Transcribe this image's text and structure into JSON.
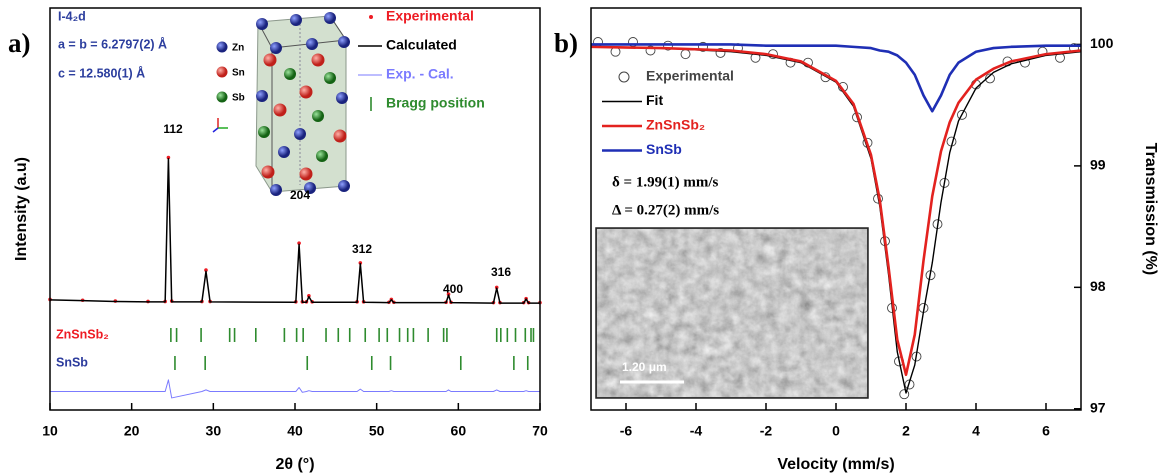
{
  "chart_data": [
    {
      "type": "line",
      "panel_label": "a)",
      "xlabel": "2θ (°)",
      "ylabel": "Intensity (a.u)",
      "xlim": [
        10,
        70
      ],
      "xticks": [
        10,
        20,
        30,
        40,
        50,
        60,
        70
      ],
      "ylim": [
        0,
        100
      ],
      "x": [
        10,
        14,
        18,
        22,
        24.1,
        24.5,
        24.9,
        28.6,
        29.1,
        29.6,
        40.1,
        40.5,
        40.9,
        41.4,
        41.7,
        42.1,
        47.6,
        48.0,
        48.4,
        51.5,
        51.8,
        52.1,
        58.5,
        58.8,
        59.1,
        64.3,
        64.7,
        65.1,
        68.0,
        68.3,
        68.6,
        70
      ],
      "series": [
        {
          "name": "Experimental",
          "color": "#ee1c24",
          "marker": "dot",
          "values": [
            27.5,
            27.3,
            27.1,
            27.0,
            27.0,
            62.8,
            27.1,
            27.0,
            34.8,
            27.0,
            26.9,
            41.5,
            26.9,
            26.9,
            28.4,
            26.9,
            26.9,
            36.6,
            26.9,
            26.8,
            27.5,
            26.8,
            26.8,
            28.8,
            26.8,
            26.7,
            30.5,
            26.7,
            26.7,
            27.7,
            26.7,
            26.7
          ]
        },
        {
          "name": "Calculated",
          "color": "#000000",
          "line_width": 1.5,
          "values": [
            27.4,
            27.2,
            27.0,
            26.9,
            26.9,
            62.5,
            26.9,
            26.9,
            34.5,
            26.9,
            26.8,
            41.2,
            26.8,
            26.8,
            28.2,
            26.8,
            26.8,
            36.4,
            26.8,
            26.7,
            27.4,
            26.7,
            26.7,
            28.6,
            26.7,
            26.6,
            30.3,
            26.6,
            26.6,
            27.6,
            26.6,
            26.6
          ]
        },
        {
          "name": "Exp. - Cal.",
          "color": "#7b7bff",
          "line_width": 1,
          "values": [
            4.6,
            4.6,
            4.6,
            4.6,
            4.6,
            7.5,
            3.0,
            4.6,
            5.0,
            4.6,
            4.6,
            5.6,
            4.4,
            4.6,
            4.8,
            4.6,
            4.6,
            5.2,
            4.6,
            4.6,
            4.8,
            4.6,
            4.6,
            5.0,
            4.6,
            4.6,
            5.0,
            4.6,
            4.6,
            4.8,
            4.6,
            4.6
          ]
        }
      ],
      "bragg": {
        "name": "Bragg position",
        "color": "#2e8b2e",
        "phases": [
          {
            "name": "ZnSnSb₂",
            "color": "#ee1c24",
            "positions": [
              24.8,
              25.5,
              28.5,
              32.0,
              32.6,
              35.2,
              38.7,
              40.2,
              41.0,
              43.8,
              45.3,
              46.7,
              48.6,
              50.3,
              51.3,
              52.8,
              53.8,
              54.5,
              56.3,
              58.2,
              58.6,
              64.7,
              65.2,
              66.0,
              67.0,
              68.2,
              68.9,
              69.2
            ]
          },
          {
            "name": "SnSb",
            "color": "#2b3a9c",
            "positions": [
              25.3,
              29.0,
              41.5,
              49.4,
              51.7,
              60.3,
              66.8,
              68.5
            ]
          }
        ]
      },
      "peak_labels": [
        "112",
        "204",
        "312",
        "400",
        "316"
      ],
      "cell_info": [
        "I-4₂d",
        "a = b = 6.2797(2) Å",
        "c = 12.580(1) Å"
      ],
      "structure_legend": [
        "Zn",
        "Sn",
        "Sb"
      ]
    },
    {
      "type": "line",
      "panel_label": "b)",
      "xlabel": "Velocity (mm/s)",
      "ylabel": "Transmission (%)",
      "xlim": [
        -7,
        7
      ],
      "xticks": [
        -6,
        -4,
        -2,
        0,
        2,
        4,
        6
      ],
      "ylim": [
        96.99,
        100.3
      ],
      "yticks": [
        97,
        98,
        99,
        100
      ],
      "y_axis_side": "right",
      "x": [
        -7,
        -5,
        -3,
        -2,
        -1,
        0,
        0.5,
        1,
        1.25,
        1.5,
        1.75,
        2,
        2.25,
        2.5,
        2.75,
        3,
        3.25,
        3.5,
        4,
        4.5,
        5,
        6,
        7
      ],
      "series": [
        {
          "name": "Experimental",
          "color": "#444444",
          "marker": "circle",
          "x": [
            -6.8,
            -6.3,
            -5.8,
            -5.3,
            -4.8,
            -4.3,
            -3.8,
            -3.3,
            -2.8,
            -2.3,
            -1.8,
            -1.3,
            -0.8,
            -0.3,
            0.2,
            0.6,
            0.9,
            1.2,
            1.4,
            1.6,
            1.8,
            1.95,
            2.1,
            2.3,
            2.5,
            2.7,
            2.9,
            3.1,
            3.3,
            3.6,
            4.0,
            4.4,
            4.9,
            5.4,
            5.9,
            6.4,
            6.8
          ],
          "values": [
            100.02,
            99.94,
            100.02,
            99.95,
            99.99,
            99.92,
            99.98,
            99.93,
            99.97,
            99.89,
            99.92,
            99.85,
            99.85,
            99.73,
            99.65,
            99.4,
            99.19,
            98.73,
            98.38,
            97.83,
            97.39,
            97.12,
            97.2,
            97.43,
            97.83,
            98.1,
            98.52,
            98.86,
            99.2,
            99.42,
            99.67,
            99.72,
            99.86,
            99.85,
            99.94,
            99.89,
            99.97
          ]
        },
        {
          "name": "Fit",
          "color": "#000000",
          "line_width": 1.4,
          "values": [
            99.98,
            99.97,
            99.94,
            99.91,
            99.85,
            99.69,
            99.49,
            99.06,
            98.67,
            98.11,
            97.47,
            97.13,
            97.36,
            97.8,
            98.2,
            98.7,
            99.11,
            99.37,
            99.64,
            99.77,
            99.84,
            99.91,
            99.94
          ]
        },
        {
          "name": "ZnSnSb₂",
          "color": "#e3221f",
          "line_width": 2.6,
          "values": [
            99.98,
            99.97,
            99.95,
            99.92,
            99.86,
            99.7,
            99.51,
            99.09,
            98.72,
            98.17,
            97.57,
            97.28,
            97.61,
            98.22,
            98.75,
            99.12,
            99.36,
            99.52,
            99.71,
            99.8,
            99.86,
            99.92,
            99.95
          ]
        },
        {
          "name": "SnSb",
          "color": "#1f2fb5",
          "line_width": 2.6,
          "values": [
            100,
            100,
            100,
            99.99,
            99.99,
            99.99,
            99.98,
            99.97,
            99.95,
            99.94,
            99.91,
            99.85,
            99.75,
            99.58,
            99.45,
            99.58,
            99.75,
            99.85,
            99.94,
            99.97,
            99.98,
            99.99,
            99.99
          ]
        }
      ],
      "annotations": [
        "δ = 1.99(1) mm/s",
        "Δ = 0.27(2) mm/s"
      ],
      "inset_scale": "1.20 μm"
    }
  ]
}
